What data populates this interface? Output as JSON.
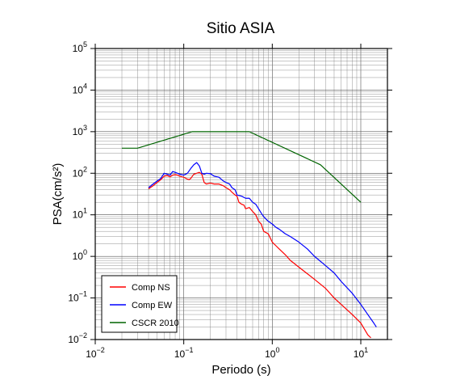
{
  "chart_data": {
    "type": "line",
    "title": "Sitio ASIA",
    "xlabel": "Periodo (s)",
    "ylabel": "PSA(cm/s²)",
    "xscale": "log",
    "yscale": "log",
    "xlim": [
      0.01,
      20
    ],
    "ylim": [
      0.01,
      100000
    ],
    "grid": true,
    "legend_position": "bottom-left",
    "x_ticks": [
      {
        "base": "10",
        "exp": "−2"
      },
      {
        "base": "10",
        "exp": "−1"
      },
      {
        "base": "10",
        "exp": "0"
      },
      {
        "base": "10",
        "exp": "1"
      }
    ],
    "y_ticks": [
      {
        "base": "10",
        "exp": "−2"
      },
      {
        "base": "10",
        "exp": "−1"
      },
      {
        "base": "10",
        "exp": "0"
      },
      {
        "base": "10",
        "exp": "1"
      },
      {
        "base": "10",
        "exp": "2"
      },
      {
        "base": "10",
        "exp": "3"
      },
      {
        "base": "10",
        "exp": "4"
      },
      {
        "base": "10",
        "exp": "5"
      }
    ],
    "series": [
      {
        "name": "Comp NS",
        "color": "#ff0000",
        "points": [
          [
            0.04,
            42
          ],
          [
            0.045,
            50
          ],
          [
            0.05,
            60
          ],
          [
            0.055,
            70
          ],
          [
            0.06,
            85
          ],
          [
            0.065,
            88
          ],
          [
            0.07,
            82
          ],
          [
            0.075,
            90
          ],
          [
            0.08,
            92
          ],
          [
            0.085,
            90
          ],
          [
            0.09,
            85
          ],
          [
            0.1,
            80
          ],
          [
            0.11,
            72
          ],
          [
            0.115,
            70
          ],
          [
            0.12,
            75
          ],
          [
            0.13,
            95
          ],
          [
            0.14,
            100
          ],
          [
            0.15,
            105
          ],
          [
            0.16,
            95
          ],
          [
            0.17,
            60
          ],
          [
            0.18,
            55
          ],
          [
            0.2,
            58
          ],
          [
            0.22,
            55
          ],
          [
            0.25,
            55
          ],
          [
            0.28,
            50
          ],
          [
            0.3,
            45
          ],
          [
            0.33,
            40
          ],
          [
            0.35,
            35
          ],
          [
            0.38,
            30
          ],
          [
            0.4,
            28
          ],
          [
            0.42,
            20
          ],
          [
            0.45,
            18
          ],
          [
            0.48,
            17
          ],
          [
            0.5,
            14
          ],
          [
            0.55,
            15
          ],
          [
            0.6,
            12
          ],
          [
            0.65,
            10
          ],
          [
            0.7,
            7
          ],
          [
            0.75,
            6
          ],
          [
            0.8,
            4
          ],
          [
            0.9,
            3.5
          ],
          [
            1.0,
            2.2
          ],
          [
            1.1,
            1.8
          ],
          [
            1.2,
            1.5
          ],
          [
            1.4,
            1.1
          ],
          [
            1.6,
            0.8
          ],
          [
            2.0,
            0.55
          ],
          [
            2.5,
            0.38
          ],
          [
            3.0,
            0.28
          ],
          [
            4.0,
            0.17
          ],
          [
            5.0,
            0.1
          ],
          [
            6.0,
            0.07
          ],
          [
            8.0,
            0.04
          ],
          [
            10.0,
            0.025
          ],
          [
            12.0,
            0.013
          ],
          [
            13.0,
            0.011
          ]
        ]
      },
      {
        "name": "Comp EW",
        "color": "#0000ff",
        "points": [
          [
            0.04,
            45
          ],
          [
            0.045,
            55
          ],
          [
            0.05,
            65
          ],
          [
            0.055,
            75
          ],
          [
            0.06,
            100
          ],
          [
            0.065,
            95
          ],
          [
            0.07,
            90
          ],
          [
            0.075,
            110
          ],
          [
            0.08,
            105
          ],
          [
            0.085,
            100
          ],
          [
            0.09,
            95
          ],
          [
            0.1,
            90
          ],
          [
            0.11,
            100
          ],
          [
            0.12,
            130
          ],
          [
            0.13,
            160
          ],
          [
            0.14,
            180
          ],
          [
            0.15,
            150
          ],
          [
            0.16,
            100
          ],
          [
            0.17,
            95
          ],
          [
            0.18,
            100
          ],
          [
            0.2,
            98
          ],
          [
            0.22,
            85
          ],
          [
            0.25,
            80
          ],
          [
            0.28,
            65
          ],
          [
            0.3,
            60
          ],
          [
            0.33,
            55
          ],
          [
            0.35,
            45
          ],
          [
            0.38,
            40
          ],
          [
            0.4,
            30
          ],
          [
            0.45,
            28
          ],
          [
            0.5,
            25
          ],
          [
            0.55,
            25
          ],
          [
            0.6,
            20
          ],
          [
            0.65,
            18
          ],
          [
            0.7,
            14
          ],
          [
            0.75,
            11
          ],
          [
            0.8,
            9
          ],
          [
            0.9,
            7
          ],
          [
            1.0,
            6
          ],
          [
            1.1,
            5
          ],
          [
            1.2,
            4.5
          ],
          [
            1.4,
            3.5
          ],
          [
            1.6,
            3
          ],
          [
            2.0,
            2.2
          ],
          [
            2.5,
            1.5
          ],
          [
            3.0,
            1.0
          ],
          [
            4.0,
            0.6
          ],
          [
            5.0,
            0.4
          ],
          [
            6.0,
            0.25
          ],
          [
            8.0,
            0.13
          ],
          [
            10.0,
            0.07
          ],
          [
            12.0,
            0.04
          ],
          [
            14.0,
            0.025
          ],
          [
            15.0,
            0.02
          ]
        ]
      },
      {
        "name": "CSCR 2010",
        "color": "#006400",
        "points": [
          [
            0.02,
            400
          ],
          [
            0.03,
            400
          ],
          [
            0.125,
            1000
          ],
          [
            0.55,
            1000
          ],
          [
            3.5,
            160
          ],
          [
            10.0,
            20
          ]
        ]
      }
    ]
  }
}
